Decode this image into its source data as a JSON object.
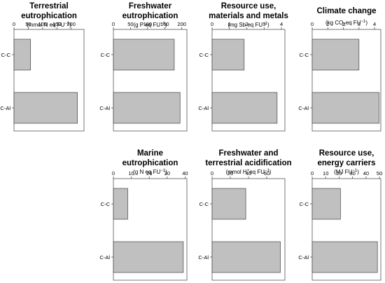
{
  "chart_data": [
    {
      "type": "bar",
      "orientation": "horizontal",
      "title": [
        "Terrestrial",
        "eutrophication"
      ],
      "unit": [
        "(mmol N eq FU",
        "−1",
        ")"
      ],
      "categories": [
        "C-C",
        "C-Al"
      ],
      "values": [
        58,
        222
      ],
      "xlim": [
        0,
        245
      ],
      "ticks": [
        0,
        50,
        100,
        150,
        200
      ],
      "grid": false,
      "color": "#c0c0c0"
    },
    {
      "type": "bar",
      "orientation": "horizontal",
      "title": [
        "Freshwater",
        "eutrophication"
      ],
      "unit": [
        "(g P eq FU",
        "−1",
        ")"
      ],
      "categories": [
        "C-C",
        "C-Al"
      ],
      "values": [
        178,
        195
      ],
      "xlim": [
        0,
        215
      ],
      "ticks": [
        0,
        50,
        100,
        150,
        200
      ],
      "grid": false,
      "color": "#c0c0c0"
    },
    {
      "type": "bar",
      "orientation": "horizontal",
      "title": [
        "Resource use,",
        "materials and metals"
      ],
      "unit": [
        "(mg Sb eq FU",
        "−1",
        ")"
      ],
      "categories": [
        "C-C",
        "C-Al"
      ],
      "values": [
        1.85,
        3.75
      ],
      "xlim": [
        0,
        4.2
      ],
      "ticks": [
        0,
        1,
        2,
        3,
        4
      ],
      "grid": false,
      "color": "#c0c0c0"
    },
    {
      "type": "bar",
      "orientation": "horizontal",
      "title": [
        "Climate change"
      ],
      "unit": [
        "(kg CO",
        "2",
        "eq FU",
        "−1",
        ")"
      ],
      "categories": [
        "C-C",
        "C-Al"
      ],
      "values": [
        3.0,
        4.3
      ],
      "xlim": [
        0,
        4.4
      ],
      "ticks": [
        0,
        1,
        2,
        3,
        4
      ],
      "grid": false,
      "color": "#c0c0c0"
    },
    {
      "type": "bar",
      "orientation": "horizontal",
      "title": [
        "Marine",
        "eutrophication"
      ],
      "unit": [
        "(g N eq FU",
        "−1",
        ")"
      ],
      "categories": [
        "C-C",
        "C-Al"
      ],
      "values": [
        8.0,
        39.0
      ],
      "xlim": [
        0,
        41
      ],
      "ticks": [
        0,
        10,
        20,
        30,
        40
      ],
      "grid": false,
      "color": "#c0c0c0"
    },
    {
      "type": "bar",
      "orientation": "horizontal",
      "title": [
        "Freshwater and",
        "terrestrial acidification"
      ],
      "unit": [
        "(mmol H",
        "+",
        "eq FU",
        "−1",
        ")"
      ],
      "categories": [
        "C-C",
        "C-Al"
      ],
      "values": [
        37,
        75
      ],
      "xlim": [
        0,
        80
      ],
      "ticks": [
        0,
        20,
        40,
        60
      ],
      "grid": false,
      "color": "#c0c0c0"
    },
    {
      "type": "bar",
      "orientation": "horizontal",
      "title": [
        "Resource  use,",
        "energy carriers"
      ],
      "unit": [
        "(MJ FU",
        "−1",
        ")"
      ],
      "categories": [
        "C-C",
        "C-Al"
      ],
      "values": [
        21,
        48.5
      ],
      "xlim": [
        0,
        51
      ],
      "ticks": [
        0,
        10,
        20,
        30,
        40,
        50
      ],
      "grid": false,
      "color": "#c0c0c0"
    }
  ]
}
